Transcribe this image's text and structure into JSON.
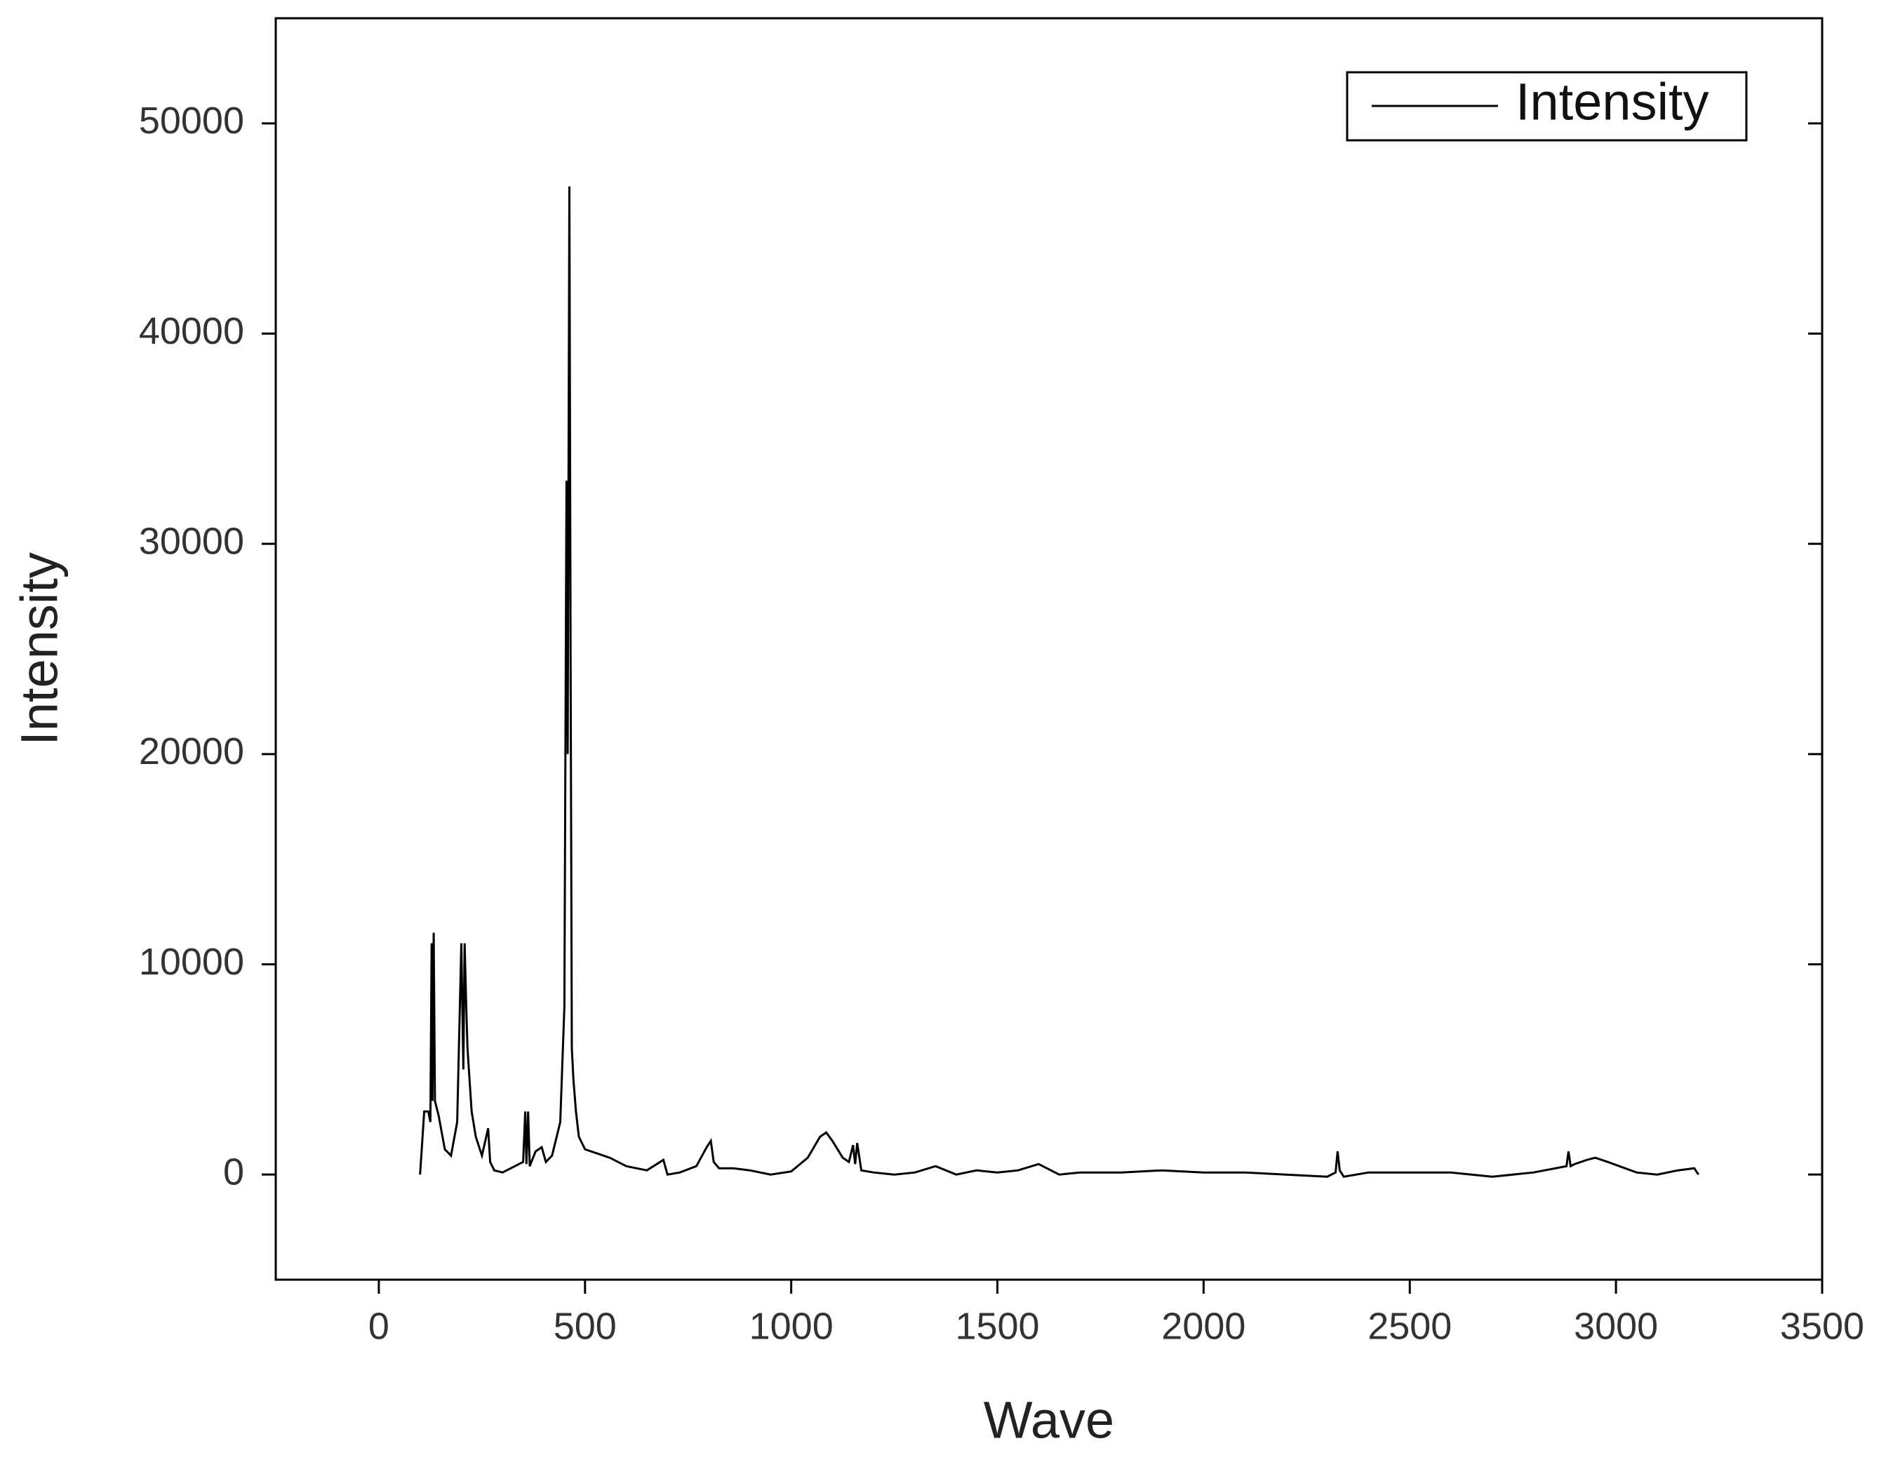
{
  "chart_data": {
    "type": "line",
    "xlabel": "Wave",
    "ylabel": "Intensity",
    "x": [
      100,
      110,
      120,
      125,
      128,
      130,
      133,
      136,
      145,
      160,
      175,
      190,
      200,
      205,
      208,
      212,
      215,
      225,
      235,
      250,
      265,
      270,
      280,
      300,
      330,
      350,
      355,
      358,
      362,
      366,
      380,
      395,
      405,
      420,
      440,
      450,
      455,
      458,
      462,
      465,
      468,
      472,
      478,
      485,
      500,
      530,
      560,
      600,
      650,
      690,
      700,
      730,
      770,
      795,
      805,
      812,
      825,
      860,
      900,
      950,
      1000,
      1040,
      1070,
      1085,
      1100,
      1125,
      1140,
      1150,
      1155,
      1160,
      1170,
      1200,
      1250,
      1300,
      1350,
      1400,
      1450,
      1500,
      1550,
      1600,
      1650,
      1700,
      1800,
      1900,
      2000,
      2100,
      2200,
      2300,
      2320,
      2325,
      2330,
      2340,
      2400,
      2500,
      2600,
      2700,
      2800,
      2880,
      2885,
      2890,
      2900,
      2930,
      2950,
      2980,
      3050,
      3100,
      3150,
      3190,
      3200
    ],
    "series": [
      {
        "name": "Intensity",
        "color": "#000000",
        "values": [
          0,
          3000,
          3000,
          2500,
          11000,
          3500,
          11500,
          3500,
          2800,
          1200,
          900,
          2500,
          11000,
          5000,
          11000,
          8000,
          6000,
          3000,
          1800,
          900,
          2200,
          600,
          200,
          100,
          400,
          600,
          3000,
          500,
          3000,
          400,
          1100,
          1300,
          600,
          900,
          2500,
          8000,
          33000,
          20000,
          47000,
          25000,
          6000,
          4500,
          3000,
          1800,
          1200,
          1000,
          800,
          400,
          200,
          700,
          0,
          100,
          400,
          1300,
          1600,
          600,
          300,
          300,
          200,
          0,
          150,
          800,
          1800,
          2000,
          1600,
          800,
          600,
          1400,
          500,
          1500,
          200,
          100,
          0,
          100,
          400,
          0,
          200,
          100,
          200,
          500,
          0,
          100,
          100,
          200,
          100,
          100,
          0,
          -100,
          100,
          1100,
          200,
          -100,
          100,
          100,
          100,
          -100,
          100,
          400,
          1100,
          400,
          500,
          700,
          800,
          600,
          100,
          0,
          200,
          300,
          0
        ]
      }
    ],
    "xlim": [
      -250,
      3500
    ],
    "xticks": [
      0,
      500,
      1000,
      1500,
      2000,
      2500,
      3000,
      3500
    ],
    "ylim": [
      -5000,
      55000
    ],
    "yticks": [
      0,
      10000,
      20000,
      30000,
      40000,
      50000
    ],
    "legend": "upper right"
  }
}
